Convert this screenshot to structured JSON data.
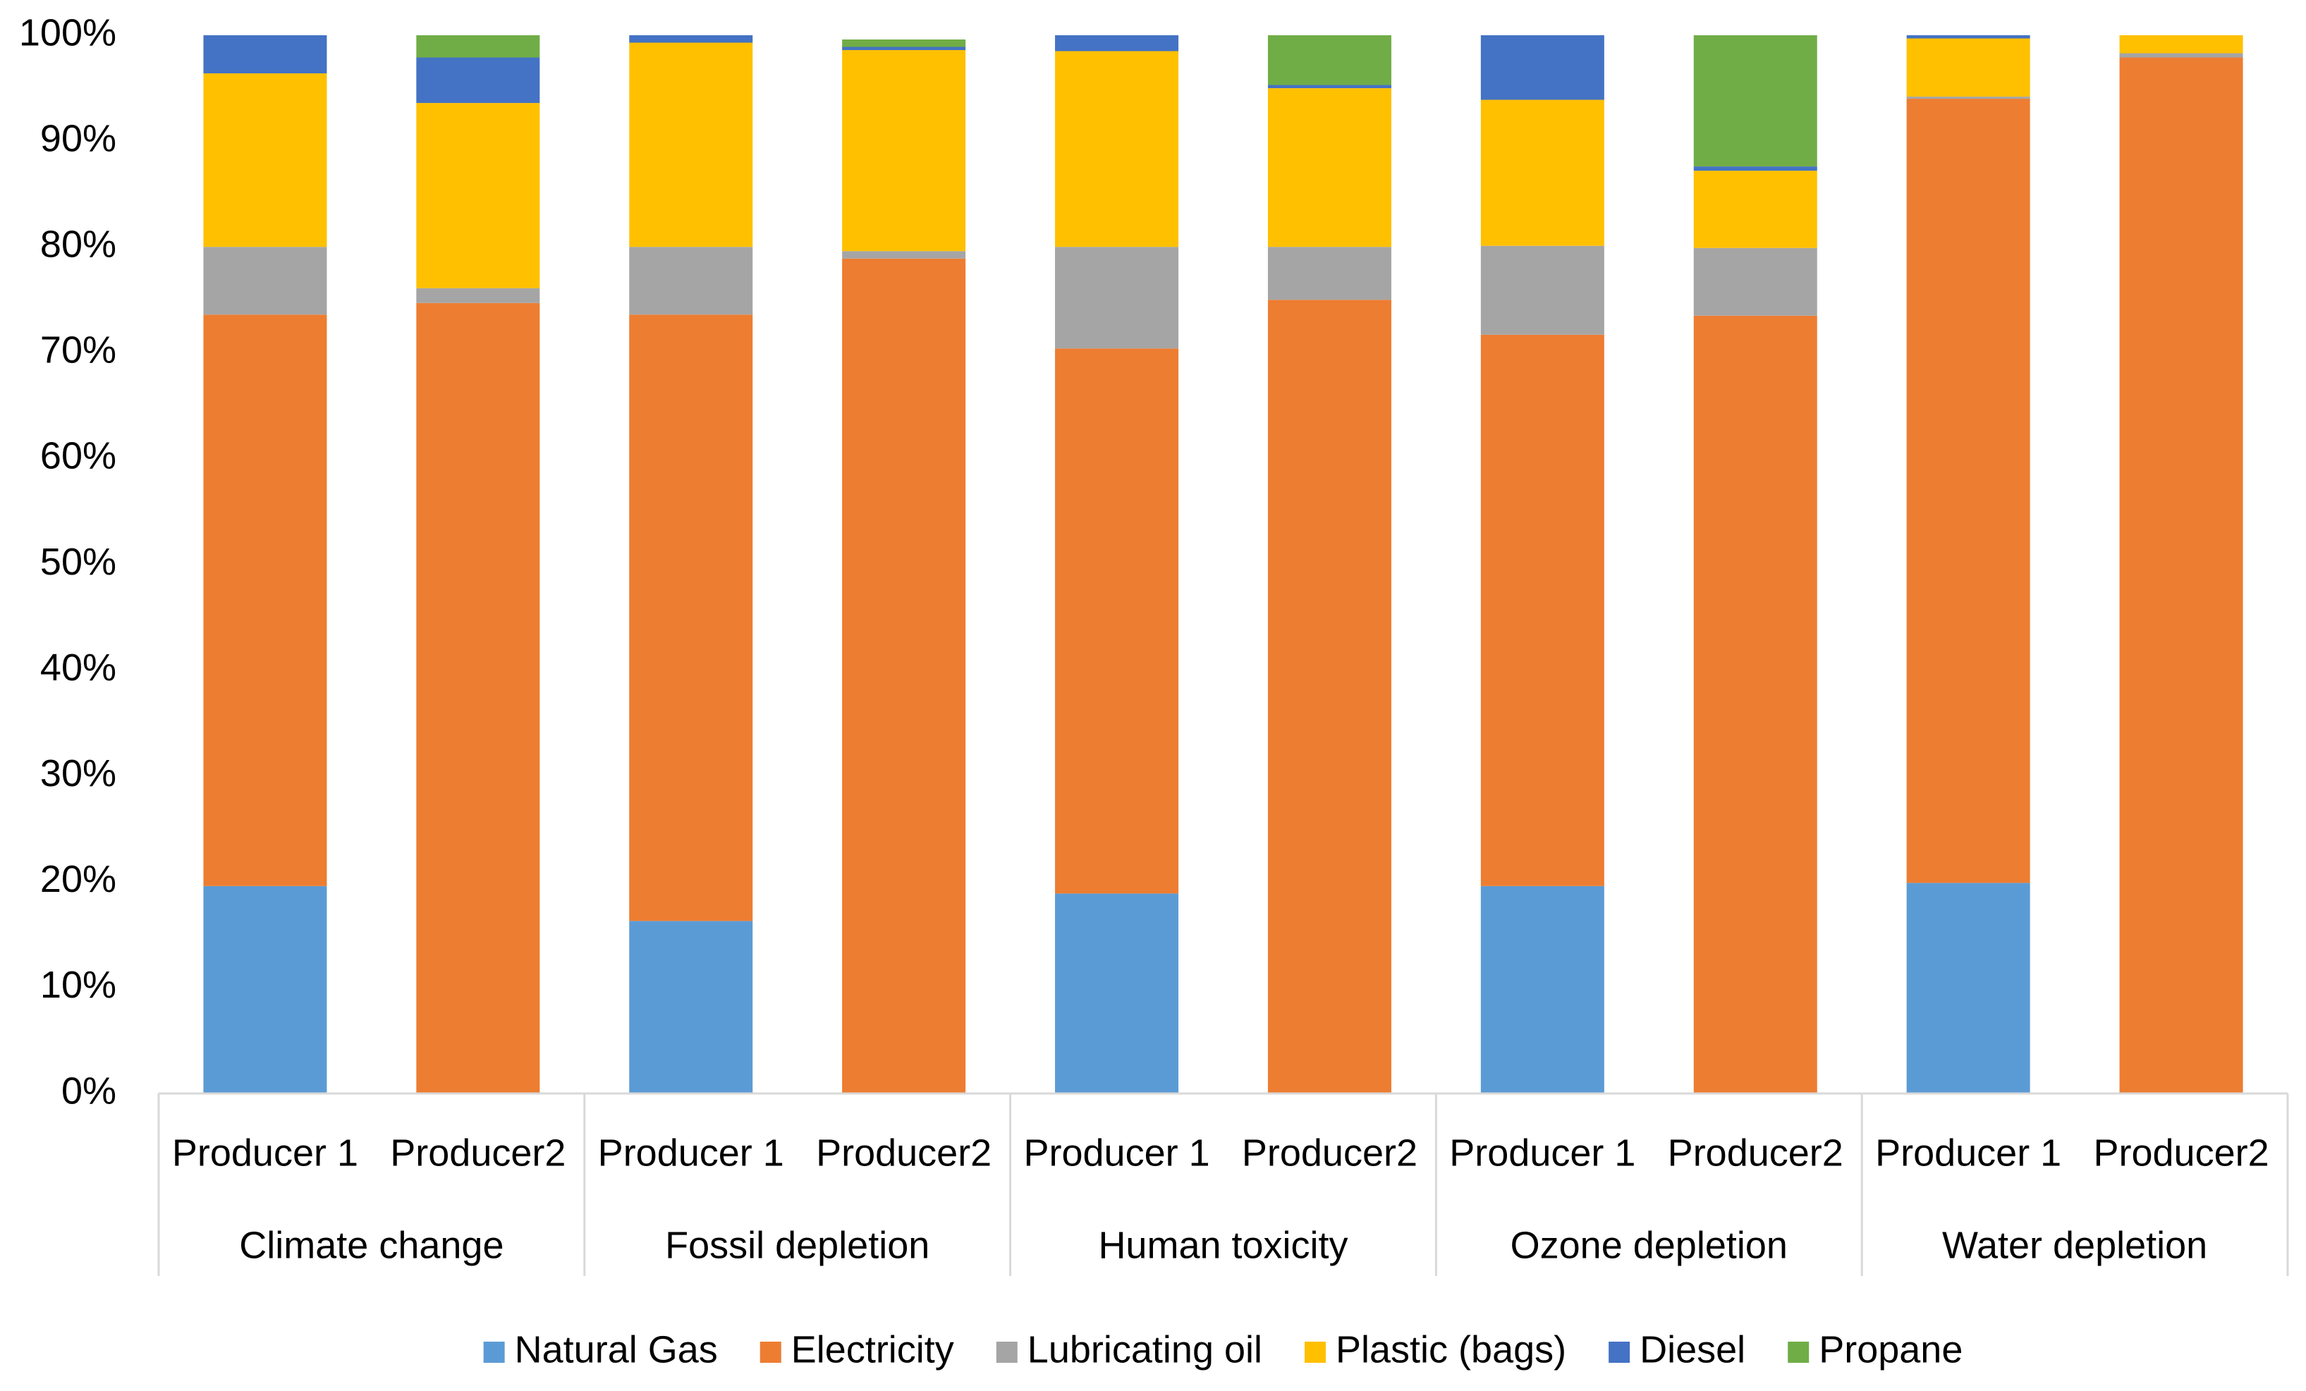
{
  "chart_data": {
    "type": "stacked_bar",
    "categories": [
      "Producer 1",
      "Producer2",
      "Producer 1",
      "Producer2",
      "Producer 1",
      "Producer2",
      "Producer 1",
      "Producer2",
      "Producer 1",
      "Producer2"
    ],
    "groups": [
      "Climate change",
      "Fossil depletion",
      "Human toxicity",
      "Ozone depletion",
      "Water depletion"
    ],
    "series": [
      {
        "name": "Natural Gas",
        "color": "#5b9bd5",
        "values": [
          19.6,
          0,
          16.3,
          0,
          18.9,
          0,
          19.6,
          0,
          19.9,
          0
        ]
      },
      {
        "name": "Electricity",
        "color": "#ed7d31",
        "values": [
          54.0,
          74.7,
          57.3,
          78.9,
          51.5,
          75.0,
          52.1,
          73.5,
          74.1,
          97.9
        ]
      },
      {
        "name": "Lubricating oil",
        "color": "#a5a5a5",
        "values": [
          6.4,
          1.4,
          6.4,
          0.7,
          9.6,
          5.0,
          8.4,
          6.4,
          0.2,
          0.4
        ]
      },
      {
        "name": "Plastic (bags)",
        "color": "#ffc000",
        "values": [
          16.4,
          17.5,
          19.3,
          19.0,
          18.5,
          15.0,
          13.8,
          7.3,
          5.5,
          1.7
        ]
      },
      {
        "name": "Diesel",
        "color": "#4472c4",
        "values": [
          3.6,
          4.3,
          0.7,
          0.3,
          1.5,
          0.3,
          6.1,
          0.4,
          0.3,
          0
        ]
      },
      {
        "name": "Propane",
        "color": "#70ad47",
        "values": [
          0,
          2.1,
          0,
          0.7,
          0,
          4.7,
          0,
          12.4,
          0,
          0
        ]
      }
    ],
    "ylim": [
      0,
      100
    ],
    "yticks": [
      {
        "value": 0,
        "label": "0%"
      },
      {
        "value": 10,
        "label": "10%"
      },
      {
        "value": 20,
        "label": "20%"
      },
      {
        "value": 30,
        "label": "30%"
      },
      {
        "value": 40,
        "label": "40%"
      },
      {
        "value": 50,
        "label": "50%"
      },
      {
        "value": 60,
        "label": "60%"
      },
      {
        "value": 70,
        "label": "70%"
      },
      {
        "value": 80,
        "label": "80%"
      },
      {
        "value": 90,
        "label": "90%"
      },
      {
        "value": 100,
        "label": "100%"
      }
    ],
    "grid": false,
    "legend": "bottom"
  }
}
